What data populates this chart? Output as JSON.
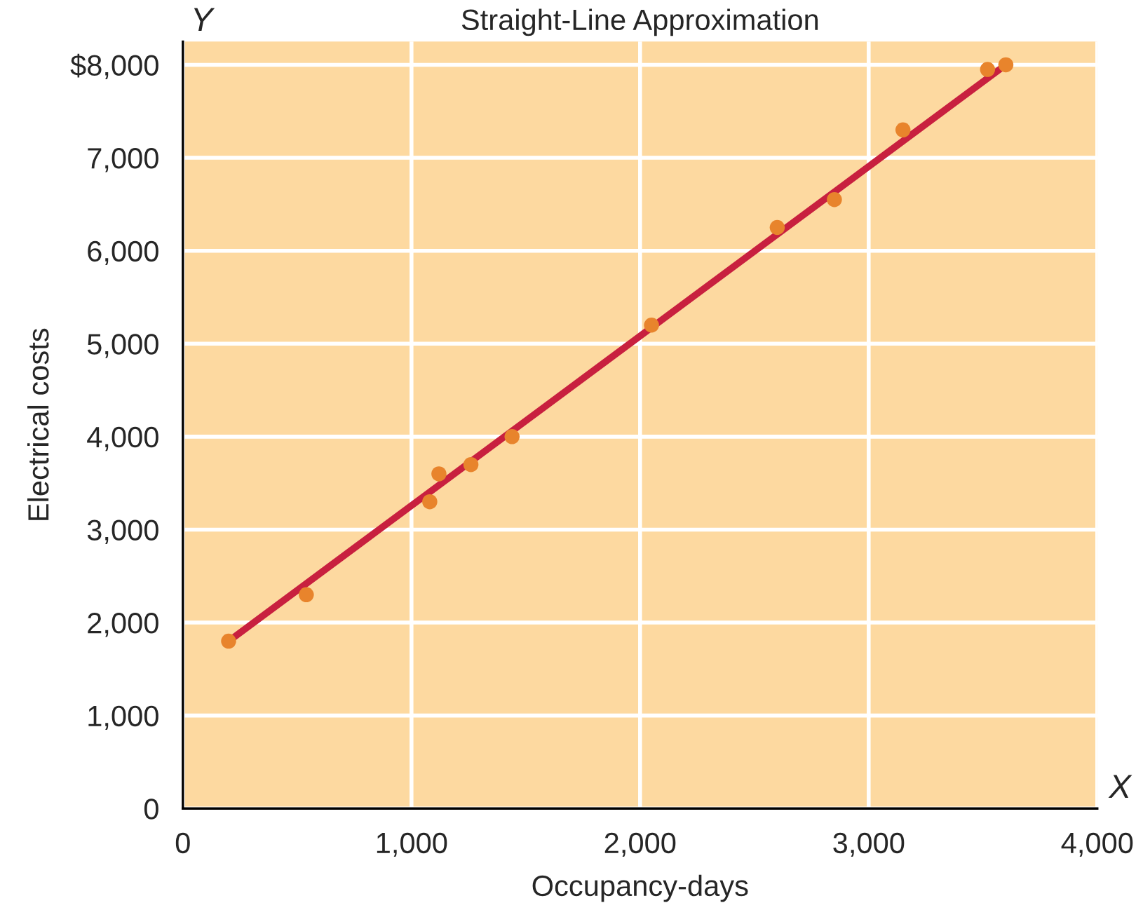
{
  "chart_data": {
    "type": "scatter",
    "title": "Straight-Line Approximation",
    "xlabel": "Occupancy-days",
    "ylabel": "Electrical costs",
    "annotations": [
      "Y",
      "X"
    ],
    "x": [
      200,
      540,
      1080,
      1120,
      1260,
      1440,
      2050,
      2600,
      2850,
      3150,
      3520,
      3600
    ],
    "series": [
      {
        "color": "#e8842c",
        "marker": "circle",
        "values": [
          1800,
          2300,
          3300,
          3600,
          3700,
          4000,
          5200,
          6250,
          6550,
          7300,
          7950,
          8000
        ]
      },
      {
        "type": "line",
        "color": "#c8203f",
        "line_style": "solid",
        "x": [
          200,
          3600
        ],
        "values": [
          1800,
          8000
        ]
      }
    ],
    "xlim": [
      0,
      4000
    ],
    "ylim": [
      0,
      8250
    ],
    "xticks": [
      0,
      {
        "value": 1000,
        "label": "1,000"
      },
      {
        "value": 2000,
        "label": "2,000"
      },
      {
        "value": 3000,
        "label": "3,000"
      },
      {
        "value": 4000,
        "label": "4,000"
      }
    ],
    "yticks": [
      0,
      {
        "value": 1000,
        "label": "1,000"
      },
      {
        "value": 2000,
        "label": "2,000"
      },
      {
        "value": 3000,
        "label": "3,000"
      },
      {
        "value": 4000,
        "label": "4,000"
      },
      {
        "value": 5000,
        "label": "5,000"
      },
      {
        "value": 6000,
        "label": "6,000"
      },
      {
        "value": 7000,
        "label": "7,000"
      },
      {
        "value": 8000,
        "label": "$8,000"
      }
    ],
    "grid": true
  }
}
